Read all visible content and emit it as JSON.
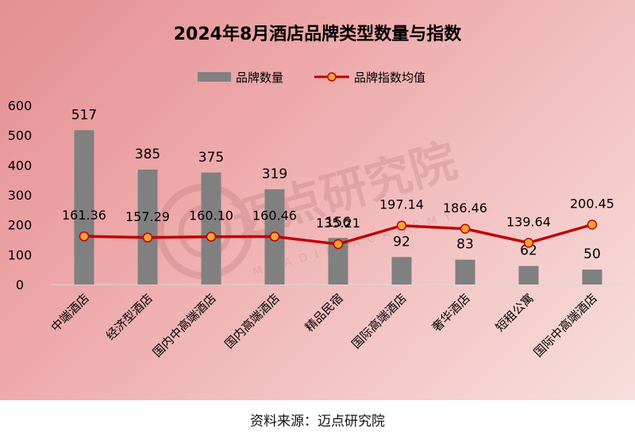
{
  "chart_data": {
    "type": "bar",
    "title": "2024年8月酒店品牌类型数量与指数",
    "categories": [
      "中端酒店",
      "经济型酒店",
      "国内中高端酒店",
      "国内高端酒店",
      "精品民宿",
      "国际高端酒店",
      "奢华酒店",
      "短租公寓",
      "国际中高端酒店"
    ],
    "series": [
      {
        "name": "品牌数量",
        "type": "bar",
        "values": [
          517,
          385,
          375,
          319,
          156,
          92,
          83,
          62,
          50
        ],
        "color": "#808080"
      },
      {
        "name": "品牌指数均值",
        "type": "line",
        "values": [
          161.36,
          157.29,
          160.1,
          160.46,
          135.21,
          197.14,
          186.46,
          139.64,
          200.45
        ],
        "value_labels": [
          "161.36",
          "157.29",
          "160.10",
          "160.46",
          "135.21",
          "197.14",
          "186.46",
          "139.64",
          "200.45"
        ],
        "color": "#c00000",
        "marker_color": "#f4a23a"
      }
    ],
    "yticks": [
      0,
      100,
      200,
      300,
      400,
      500,
      600
    ],
    "ylim": [
      0,
      600
    ],
    "legend_position": "top-center",
    "grid": false
  },
  "watermark": {
    "text": "迈点研究院",
    "subtext": "MEADIN ACADEMY"
  },
  "source": "资料来源：迈点研究院"
}
